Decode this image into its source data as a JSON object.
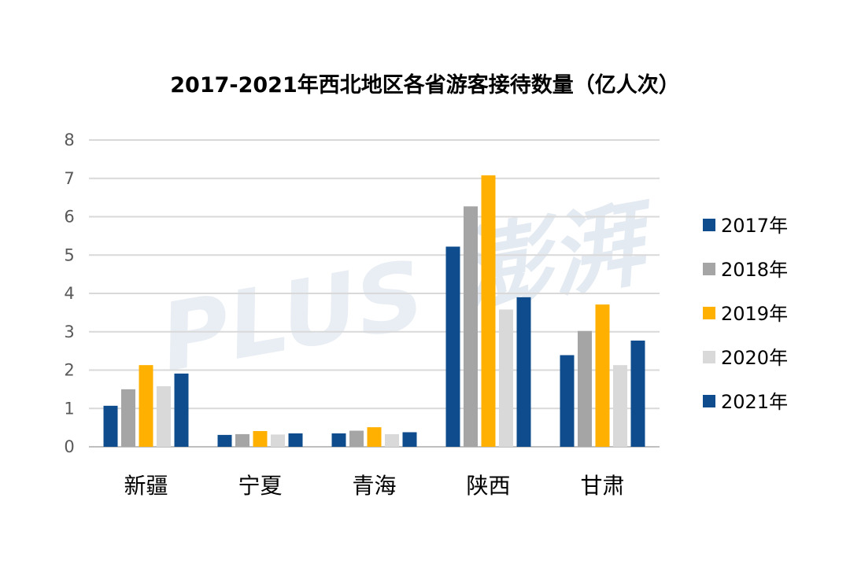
{
  "chart_data": {
    "type": "bar",
    "title": "2017-2021年西北地区各省游客接待数量（亿人次）",
    "categories": [
      "新疆",
      "宁夏",
      "青海",
      "陕西",
      "甘肃"
    ],
    "series": [
      {
        "name": "2017年",
        "color": "#0E4C8E",
        "values": [
          1.07,
          0.31,
          0.35,
          5.22,
          2.39
        ]
      },
      {
        "name": "2018年",
        "color": "#A5A5A5",
        "values": [
          1.5,
          0.33,
          0.42,
          6.27,
          3.02
        ]
      },
      {
        "name": "2019年",
        "color": "#FFB000",
        "values": [
          2.13,
          0.41,
          0.51,
          7.08,
          3.71
        ]
      },
      {
        "name": "2020年",
        "color": "#D9D9D9",
        "values": [
          1.58,
          0.32,
          0.33,
          3.58,
          2.13
        ]
      },
      {
        "name": "2021年",
        "color": "#0E4C8E",
        "values": [
          1.91,
          0.35,
          0.38,
          3.9,
          2.77
        ]
      }
    ],
    "yticks": [
      "0",
      "1",
      "2",
      "3",
      "4",
      "5",
      "6",
      "7",
      "8"
    ],
    "ylim": [
      0,
      8
    ],
    "grid": true,
    "legend_position": "right"
  },
  "watermark": {
    "latin": "PLUS",
    "cjk": "澎湃"
  }
}
